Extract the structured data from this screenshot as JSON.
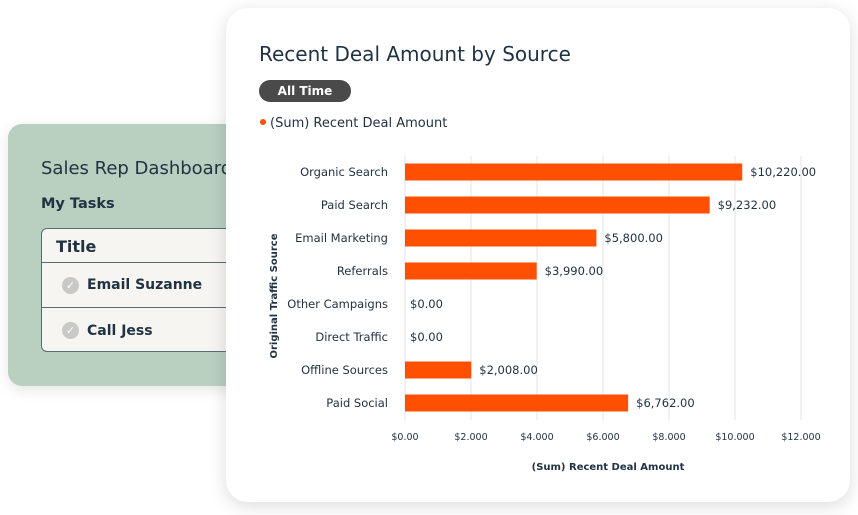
{
  "dashboard": {
    "title": "Sales Rep Dashboard",
    "subtitle": "My Tasks",
    "table_header": "Title",
    "tasks": [
      {
        "label": "Email Suzanne",
        "icon": "check-circle-icon"
      },
      {
        "label": "Call Jess",
        "icon": "check-circle-icon"
      }
    ]
  },
  "chart_filter": "All Time",
  "colors": {
    "bar": "#ff4f00",
    "pill": "#4a4a4a"
  },
  "chart_data": {
    "type": "bar",
    "orientation": "horizontal",
    "title": "Recent Deal Amount by Source",
    "xlabel": "(Sum) Recent Deal Amount",
    "ylabel": "Original Traffic Source",
    "legend": [
      "(Sum) Recent Deal Amount"
    ],
    "legend_position": "top-left",
    "categories": [
      "Organic Search",
      "Paid Search",
      "Email Marketing",
      "Referrals",
      "Other Campaigns",
      "Direct Traffic",
      "Offline Sources",
      "Paid Social"
    ],
    "values": [
      10220,
      9232,
      5800,
      3990,
      0,
      0,
      2008,
      6762
    ],
    "value_labels": [
      "$10,220.00",
      "$9,232.00",
      "$5,800.00",
      "$3,990.00",
      "$0.00",
      "$0.00",
      "$2,008.00",
      "$6,762.00"
    ],
    "xlim": [
      0,
      12000
    ],
    "xticks": [
      0,
      2000,
      4000,
      6000,
      8000,
      10000,
      12000
    ],
    "xtick_labels": [
      "$0.00",
      "$2.000",
      "$4.000",
      "$6.000",
      "$8.000",
      "$10.000",
      "$12.000"
    ],
    "grid": "vertical"
  }
}
